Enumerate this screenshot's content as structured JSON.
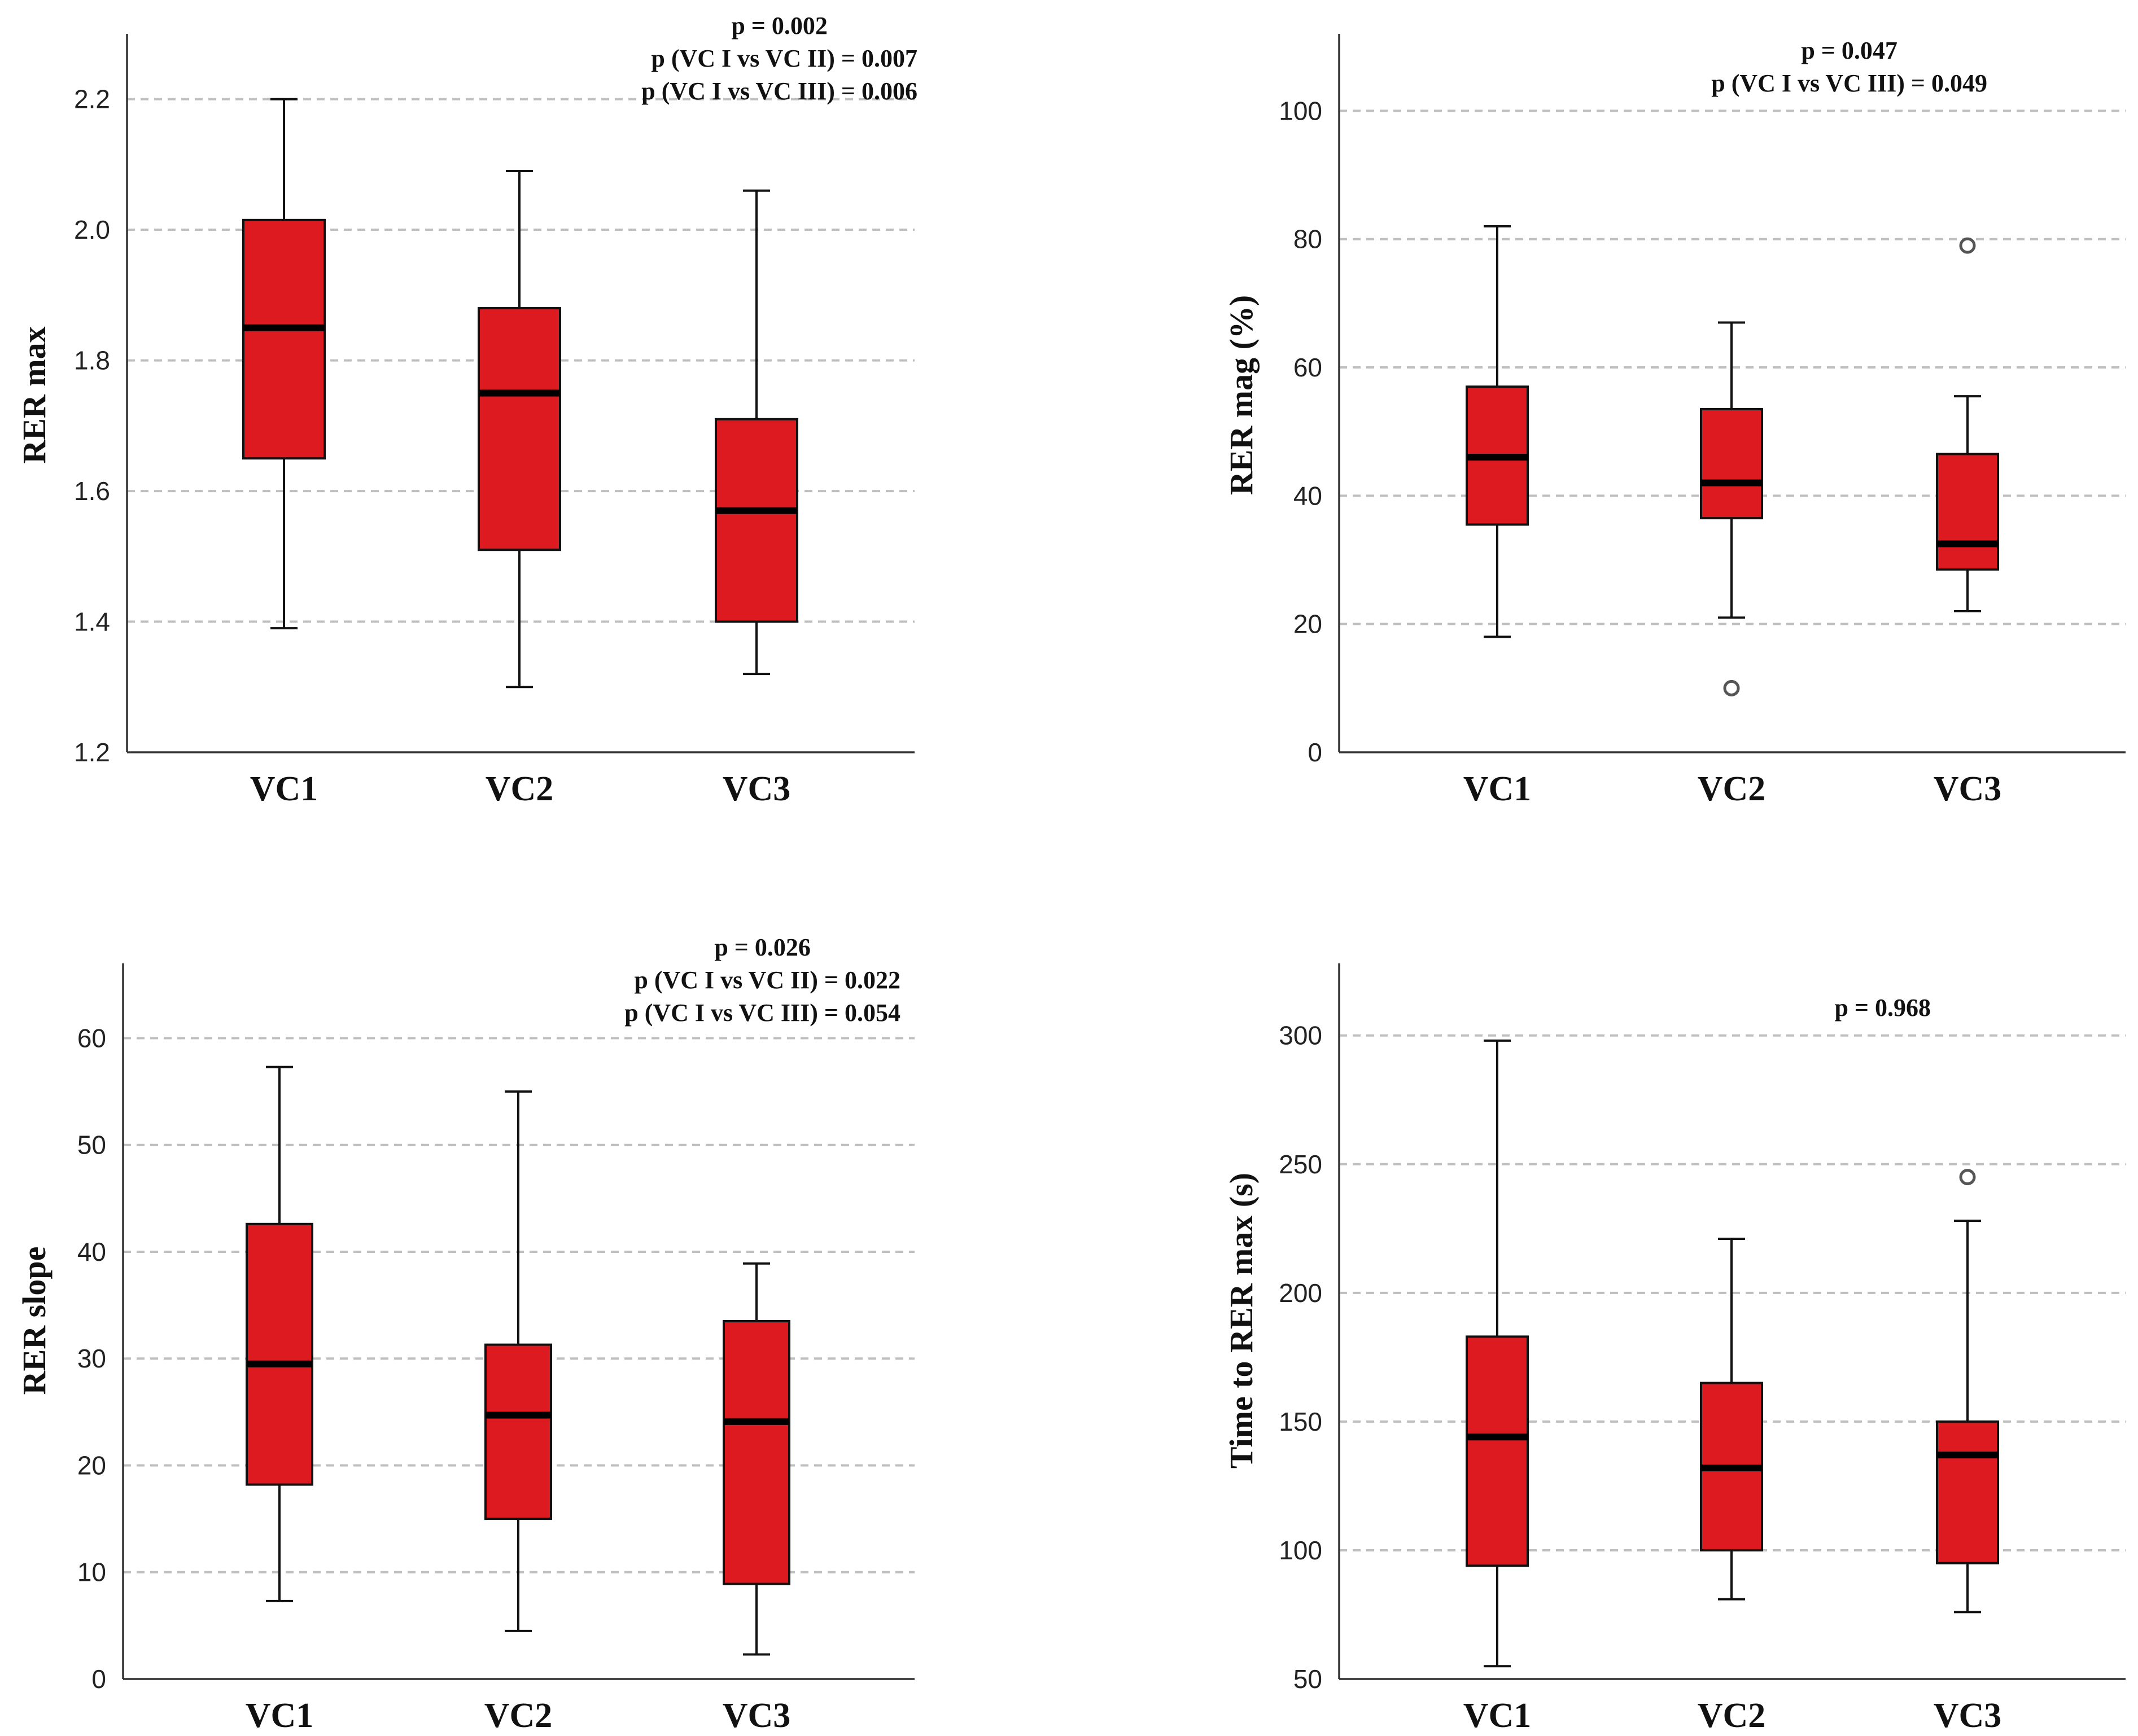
{
  "colors": {
    "box_fill": "#dc1a1f",
    "grid": "#bfbfbf",
    "axis": "#333333"
  },
  "chart_data": [
    {
      "type": "boxplot",
      "ylabel": "RER max",
      "ylim": [
        1.2,
        2.3
      ],
      "yticks": [
        "1.2",
        "1.4",
        "1.6",
        "1.8",
        "2.0",
        "2.2"
      ],
      "categories": [
        "VC1",
        "VC2",
        "VC3"
      ],
      "boxes": [
        {
          "whislo": 1.39,
          "q1": 1.65,
          "med": 1.85,
          "q3": 2.015,
          "whishi": 2.2,
          "fliers": []
        },
        {
          "whislo": 1.3,
          "q1": 1.51,
          "med": 1.75,
          "q3": 1.88,
          "whishi": 2.09,
          "fliers": []
        },
        {
          "whislo": 1.32,
          "q1": 1.4,
          "med": 1.57,
          "q3": 1.71,
          "whishi": 2.06,
          "fliers": []
        }
      ],
      "annotations": [
        "p = 0.002",
        "p (VC I vs VC II) = 0.007",
        "p (VC I vs VC III) = 0.006"
      ]
    },
    {
      "type": "boxplot",
      "ylabel": "RER mag (%)",
      "ylim": [
        0,
        112
      ],
      "yticks": [
        "0",
        "20",
        "40",
        "60",
        "80",
        "100"
      ],
      "categories": [
        "VC1",
        "VC2",
        "VC3"
      ],
      "boxes": [
        {
          "whislo": 18,
          "q1": 35.5,
          "med": 46,
          "q3": 57,
          "whishi": 82,
          "fliers": []
        },
        {
          "whislo": 21,
          "q1": 36.5,
          "med": 42,
          "q3": 53.5,
          "whishi": 67,
          "fliers": [
            10
          ]
        },
        {
          "whislo": 22,
          "q1": 28.5,
          "med": 32.5,
          "q3": 46.5,
          "whishi": 55.5,
          "fliers": [
            79
          ]
        }
      ],
      "annotations": [
        "p = 0.047",
        "p (VC I vs VC III) = 0.049"
      ]
    },
    {
      "type": "boxplot",
      "ylabel": "RER slope",
      "ylim": [
        0,
        67
      ],
      "yticks": [
        "0",
        "10",
        "20",
        "30",
        "40",
        "50",
        "60"
      ],
      "categories": [
        "VC1",
        "VC2",
        "VC3"
      ],
      "boxes": [
        {
          "whislo": 7.3,
          "q1": 18.2,
          "med": 29.5,
          "q3": 42.6,
          "whishi": 57.3,
          "fliers": []
        },
        {
          "whislo": 4.5,
          "q1": 15,
          "med": 24.7,
          "q3": 31.3,
          "whishi": 55,
          "fliers": []
        },
        {
          "whislo": 2.3,
          "q1": 8.9,
          "med": 24.1,
          "q3": 33.5,
          "whishi": 38.9,
          "fliers": []
        }
      ],
      "annotations": [
        "p = 0.026",
        "p (VC I vs VC II) = 0.022",
        "p (VC I vs VC III) = 0.054"
      ]
    },
    {
      "type": "boxplot",
      "ylabel": "Time to RER max (s)",
      "ylim": [
        50,
        328
      ],
      "yticks": [
        "50",
        "100",
        "150",
        "200",
        "250",
        "300"
      ],
      "categories": [
        "VC1",
        "VC2",
        "VC3"
      ],
      "boxes": [
        {
          "whislo": 55,
          "q1": 94,
          "med": 144,
          "q3": 183,
          "whishi": 298,
          "fliers": []
        },
        {
          "whislo": 81,
          "q1": 100,
          "med": 132,
          "q3": 165,
          "whishi": 221,
          "fliers": []
        },
        {
          "whislo": 76,
          "q1": 95,
          "med": 137,
          "q3": 150,
          "whishi": 228,
          "fliers": [
            245
          ]
        }
      ],
      "annotations": [
        "p = 0.968"
      ]
    }
  ]
}
